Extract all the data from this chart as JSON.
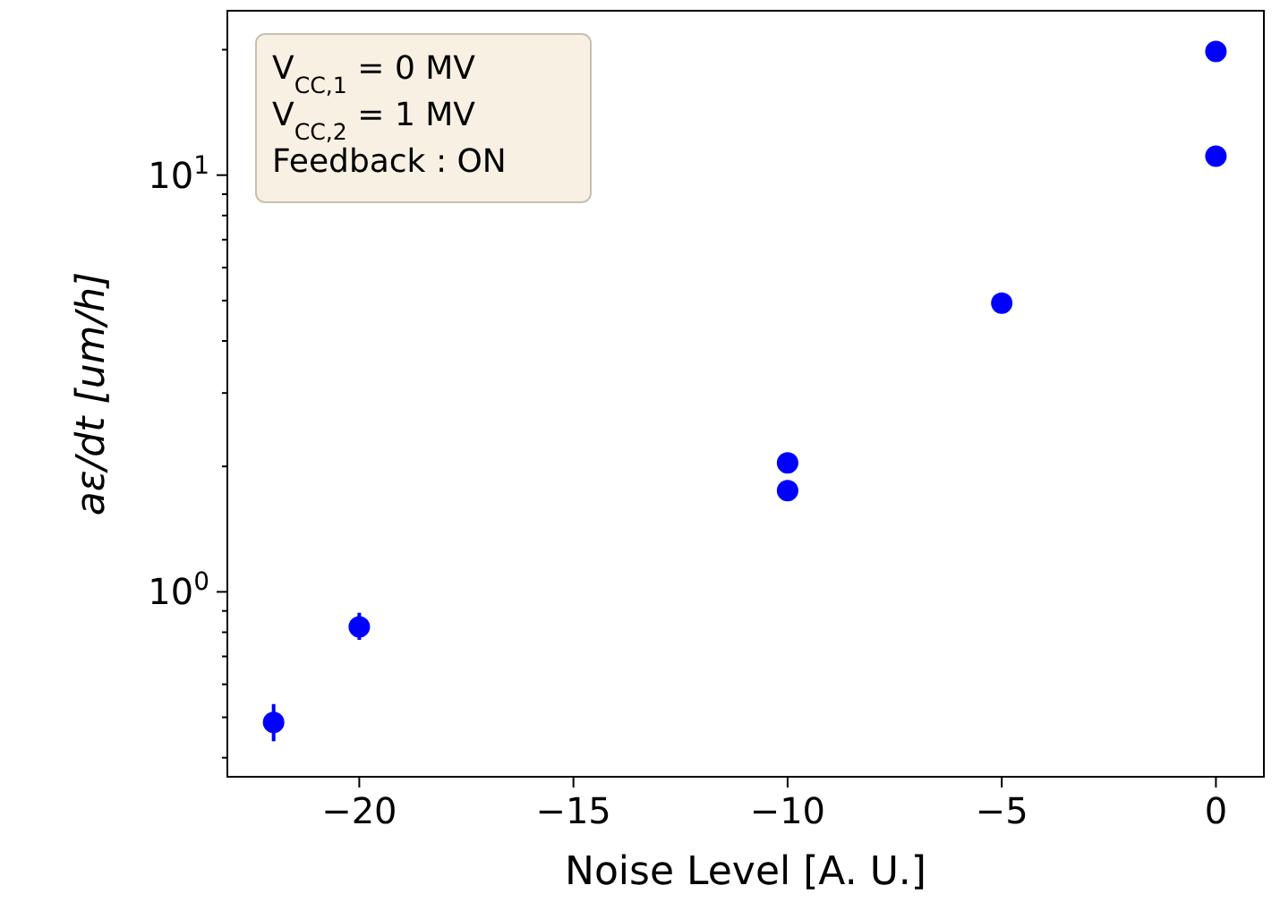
{
  "chart_data": {
    "type": "scatter",
    "xlabel": "Noise Level [A. U.]",
    "ylabel": "aε/dt [um/h]",
    "log": "y",
    "marker": "circle",
    "grid": false,
    "annotations": [
      "V$_{CC,1}$ = 0 MV",
      "V$_{CC,2}$ = 1 MV",
      "Feedback :  ON"
    ],
    "xlim": [
      -23.08,
      1.12
    ],
    "xticks": [
      {
        "value": -20,
        "label": "−20"
      },
      {
        "value": -15,
        "label": "−15"
      },
      {
        "value": -10,
        "label": "−10"
      },
      {
        "value": -5,
        "label": "−5"
      },
      {
        "value": 0,
        "label": "0"
      }
    ],
    "ylim": [
      0.36,
      24.8
    ],
    "yticks": [
      {
        "value": 0.4,
        "label": null
      },
      {
        "value": 0.5,
        "label": null
      },
      {
        "value": 0.6,
        "label": null
      },
      {
        "value": 0.7,
        "label": null
      },
      {
        "value": 0.8,
        "label": null
      },
      {
        "value": 0.9,
        "label": null
      },
      {
        "value": 1,
        "label": "10$^{0}$"
      },
      {
        "value": 2,
        "label": null
      },
      {
        "value": 3,
        "label": null
      },
      {
        "value": 4,
        "label": null
      },
      {
        "value": 5,
        "label": null
      },
      {
        "value": 6,
        "label": null
      },
      {
        "value": 7,
        "label": null
      },
      {
        "value": 8,
        "label": null
      },
      {
        "value": 9,
        "label": null
      },
      {
        "value": 10,
        "label": "10$^{1}$"
      },
      {
        "value": 20,
        "label": null
      }
    ],
    "series": [
      {
        "color": "#0000ff",
        "x": [
          -22,
          -20,
          -10,
          -10,
          -5,
          0,
          0
        ],
        "values": [
          0.486,
          0.824,
          2.04,
          1.75,
          4.93,
          19.8,
          11.1
        ],
        "errors": [
          [
            0.438,
            0.538
          ],
          [
            0.767,
            0.891
          ],
          null,
          [
            1.69,
            1.81
          ],
          null,
          null,
          null
        ]
      }
    ]
  }
}
